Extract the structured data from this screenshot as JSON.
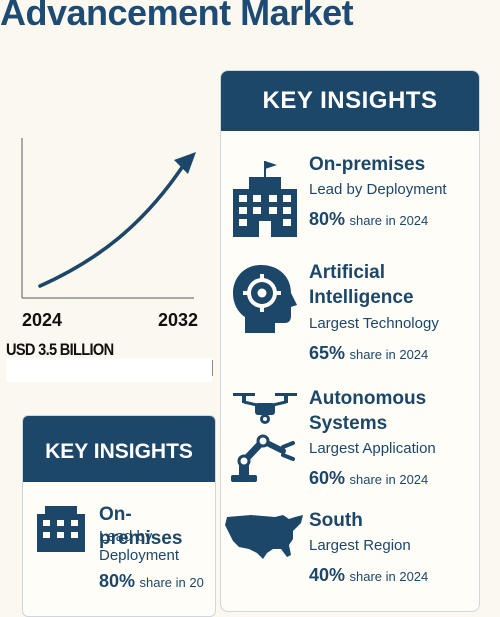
{
  "page": {
    "title": "Advancement Market"
  },
  "chart": {
    "start_year": "2024",
    "end_year": "2032",
    "market_value": "USD 3.5 BILLION"
  },
  "panel": {
    "heading": "KEY INSIGHTS",
    "insights": [
      {
        "icon": "building-icon",
        "title": "On-premises",
        "subtitle": "Lead by Deployment",
        "share_value": "80%",
        "share_text": "share in 2024"
      },
      {
        "icon": "ai-head-gear-icon",
        "title_line1": "Artificial",
        "title_line2": "Intelligence",
        "subtitle": "Largest Technology",
        "share_value": "65%",
        "share_text": "share in 2024"
      },
      {
        "icon": "drone-robot-arm-icon",
        "title_line1": "Autonomous",
        "title_line2": "Systems",
        "subtitle": "Largest Application",
        "share_value": "60%",
        "share_text": "share in 2024"
      },
      {
        "icon": "us-map-icon",
        "title": "South",
        "subtitle": "Largest Region",
        "share_value": "40%",
        "share_text": "share in 2024"
      }
    ]
  },
  "card2": {
    "heading": "KEY INSIGHTS",
    "insight": {
      "icon": "building-icon",
      "title": "On-premises",
      "subtitle_line1": "Lead by",
      "subtitle_line2": "Deployment",
      "share_value": "80%",
      "share_text": "share in 20"
    }
  },
  "colors": {
    "primary": "#1d4768",
    "background": "#fbf8f0"
  }
}
